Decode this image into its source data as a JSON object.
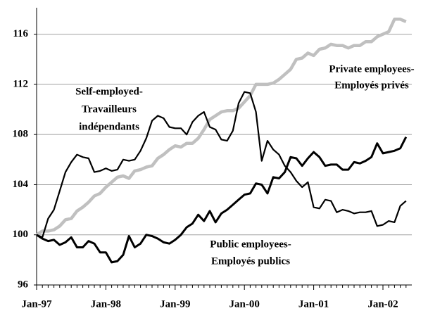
{
  "chart_data": {
    "type": "line",
    "categories": [
      "Jan-97",
      null,
      null,
      null,
      null,
      null,
      null,
      null,
      null,
      null,
      null,
      null,
      "Jan-98",
      null,
      null,
      null,
      null,
      null,
      null,
      null,
      null,
      null,
      null,
      null,
      "Jan-99",
      null,
      null,
      null,
      null,
      null,
      null,
      null,
      null,
      null,
      null,
      null,
      "Jan-00",
      null,
      null,
      null,
      null,
      null,
      null,
      null,
      null,
      null,
      null,
      null,
      "Jan-01",
      null,
      null,
      null,
      null,
      null,
      null,
      null,
      null,
      null,
      null,
      null,
      "Jan-02",
      null,
      null,
      null,
      null
    ],
    "series": [
      {
        "name": "Self-employed",
        "color": "#000000",
        "values": [
          100,
          99.8,
          101.3,
          102,
          103.5,
          105,
          105.8,
          106.4,
          106.2,
          106.1,
          105,
          105.1,
          105.3,
          105.1,
          105.2,
          106,
          105.9,
          106,
          106.7,
          107.7,
          109.1,
          109.5,
          109.3,
          108.6,
          108.5,
          108.5,
          108,
          109,
          109.5,
          109.8,
          108.6,
          108.4,
          107.6,
          107.5,
          108.3,
          110.5,
          111.4,
          111.3,
          109.8,
          105.9,
          107.5,
          106.8,
          106.4,
          105.5,
          105,
          104.3,
          103.8,
          104.2,
          102.2,
          102.1,
          102.8,
          102.7,
          101.8,
          102,
          101.9,
          101.7,
          101.8,
          101.8,
          101.9,
          100.7,
          100.8,
          101.1,
          101,
          102.3,
          102.7
        ]
      },
      {
        "name": "Private employees",
        "color": "#c0c0c0",
        "values": [
          100,
          100.3,
          100.3,
          100.4,
          100.7,
          101.2,
          101.3,
          101.9,
          102.2,
          102.6,
          103.1,
          103.3,
          103.8,
          104.2,
          104.6,
          104.7,
          104.5,
          105.1,
          105.2,
          105.4,
          105.5,
          106.1,
          106.4,
          106.8,
          107.1,
          107,
          107.3,
          107.3,
          107.7,
          108.4,
          109.2,
          109.5,
          109.8,
          109.9,
          109.9,
          110.1,
          110.6,
          111.1,
          112,
          112,
          112,
          112.1,
          112.4,
          112.8,
          113.2,
          114,
          114.1,
          114.5,
          114.3,
          114.8,
          114.9,
          115.2,
          115.1,
          115.1,
          114.9,
          115.1,
          115.1,
          115.4,
          115.4,
          115.8,
          116,
          116.2,
          117.2,
          117.2,
          117
        ]
      },
      {
        "name": "Public employees",
        "color": "#000000",
        "values": [
          100,
          99.7,
          99.5,
          99.6,
          99.2,
          99.4,
          99.8,
          99,
          99,
          99.5,
          99.3,
          98.6,
          98.6,
          97.8,
          97.9,
          98.4,
          99.9,
          99,
          99.3,
          100,
          99.9,
          99.7,
          99.4,
          99.3,
          99.6,
          100,
          100.6,
          100.9,
          101.6,
          101.1,
          101.9,
          101,
          101.7,
          102,
          102.4,
          102.8,
          103.2,
          103.3,
          104.1,
          104,
          103.3,
          104.6,
          104.5,
          105,
          106.2,
          106.1,
          105.5,
          106.1,
          106.6,
          106.2,
          105.5,
          105.6,
          105.6,
          105.2,
          105.2,
          105.8,
          105.7,
          105.9,
          106.2,
          107.3,
          106.5,
          106.6,
          106.7,
          106.9,
          107.8
        ]
      }
    ],
    "annotations": [
      {
        "lines": [
          "Self-employed-",
          "Travailleurs",
          "indépendants"
        ]
      },
      {
        "lines": [
          "Private employees-",
          "Employés privés"
        ]
      },
      {
        "lines": [
          "Public employees-",
          "Employés publics"
        ]
      }
    ],
    "ylim": [
      96,
      118
    ],
    "yticks": [
      96,
      100,
      104,
      108,
      112,
      116
    ],
    "grid": true
  }
}
